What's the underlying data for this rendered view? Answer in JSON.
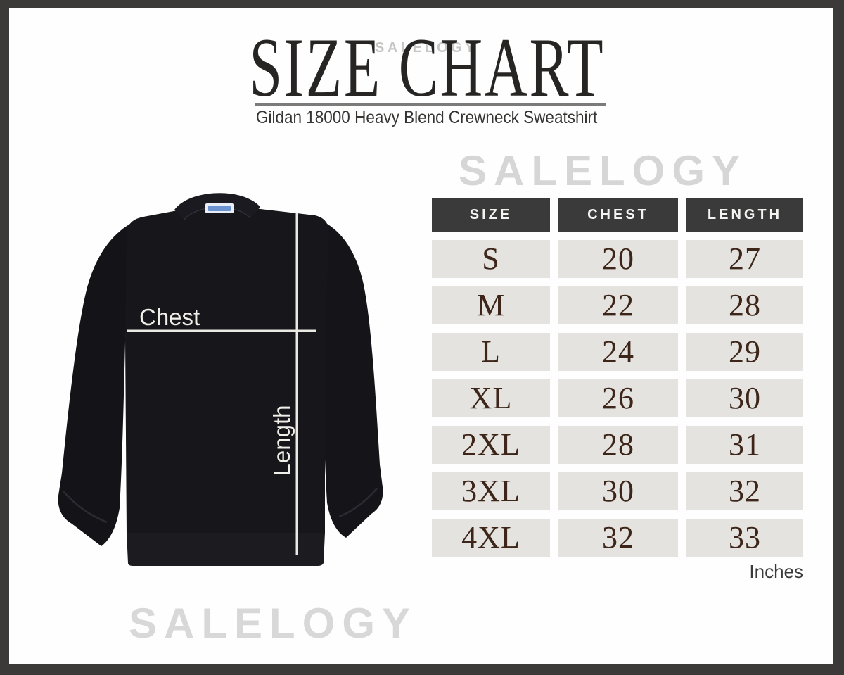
{
  "page": {
    "watermark": "SALELOGY",
    "frame_color": "#3b3a39",
    "background_color": "#fefefe"
  },
  "header": {
    "title": "SIZE CHART",
    "subtitle": "Gildan 18000 Heavy Blend Crewneck Sweatshirt"
  },
  "diagram": {
    "garment": "black crewneck sweatshirt",
    "chest_label": "Chest",
    "length_label": "Length",
    "neck_tag_color": "#6b93cf",
    "measure_line_color": "#eae8e3"
  },
  "chart_data": {
    "type": "table",
    "title": "SIZE CHART",
    "subtitle": "Gildan 18000 Heavy Blend Crewneck Sweatshirt",
    "units": "Inches",
    "columns": [
      "SIZE",
      "CHEST",
      "LENGTH"
    ],
    "rows": [
      [
        "S",
        "20",
        "27"
      ],
      [
        "M",
        "22",
        "28"
      ],
      [
        "L",
        "24",
        "29"
      ],
      [
        "XL",
        "26",
        "30"
      ],
      [
        "2XL",
        "28",
        "31"
      ],
      [
        "3XL",
        "30",
        "32"
      ],
      [
        "4XL",
        "32",
        "33"
      ]
    ]
  },
  "colors": {
    "header_cell_bg": "#3a3a3a",
    "header_cell_text": "#f3f3f1",
    "body_cell_bg": "#e4e3df",
    "body_cell_text": "#3d2619",
    "watermark": "#d6d6d6",
    "frame": "#3b3a39"
  }
}
